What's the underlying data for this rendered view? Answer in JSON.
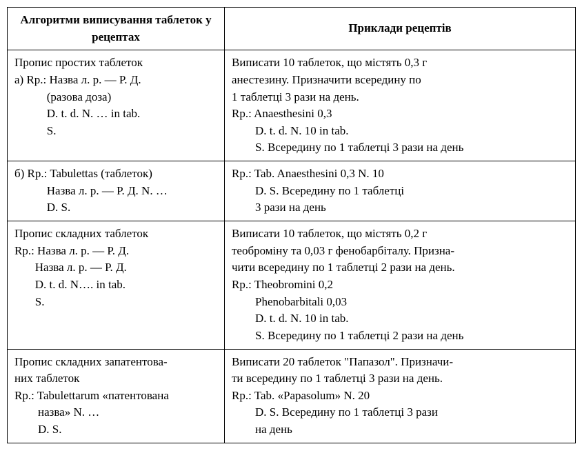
{
  "table": {
    "header_left": "Алгоритми виписування\nтаблеток у рецептах",
    "header_right": "Приклади рецептів",
    "rows": [
      {
        "left": "Пропис простих таблеток\nа) Rp.: Назва л. р. — Р. Д.\n           (разова доза)\n           D. t. d. N. … in tab.\n           S.",
        "right": "Виписати 10 таблеток, що містять 0,3 г\nанестезину. Призначити всередину по\n1 таблетці 3 рази на день.\nRp.: Anaesthesini 0,3\n        D. t. d. N. 10 in tab.\n        S. Всередину по 1 таблетці 3 рази на день"
      },
      {
        "left": "б) Rp.: Tabulettas (таблеток)\n           Назва л. р. — Р. Д. N. …\n           D. S.",
        "right": "Rp.: Tab. Anaesthesini 0,3 N. 10\n        D. S. Всередину по 1 таблетці\n        3 рази на день"
      },
      {
        "left": "Пропис складних таблеток\nRp.: Назва л. р. — Р. Д.\n       Назва л. р. — Р. Д.\n       D. t. d. N…. in tab.\n       S.",
        "right": "Виписати 10 таблеток, що містять 0,2 г\nтеоброміну та 0,03 г фенобарбіталу. Призна-\nчити всередину по 1 таблетці 2 рази на день.\nRp.: Theobromini 0,2\n        Phenobarbitali 0,03\n        D. t. d. N. 10 in tab.\n        S. Всередину по 1 таблетці 2 рази на день"
      },
      {
        "left": "Пропис складних запатентова-\nних таблеток\nRp.: Tabulettarum «патентована\n        назва» N. …\n        D. S.",
        "right": "Виписати 20 таблеток \"Папазол\". Призначи-\nти всередину по 1 таблетці 3 рази на день.\nRp.: Tab. «Papasolum» N. 20\n        D. S. Всередину по 1 таблетці 3 рази\n        на день"
      }
    ]
  }
}
